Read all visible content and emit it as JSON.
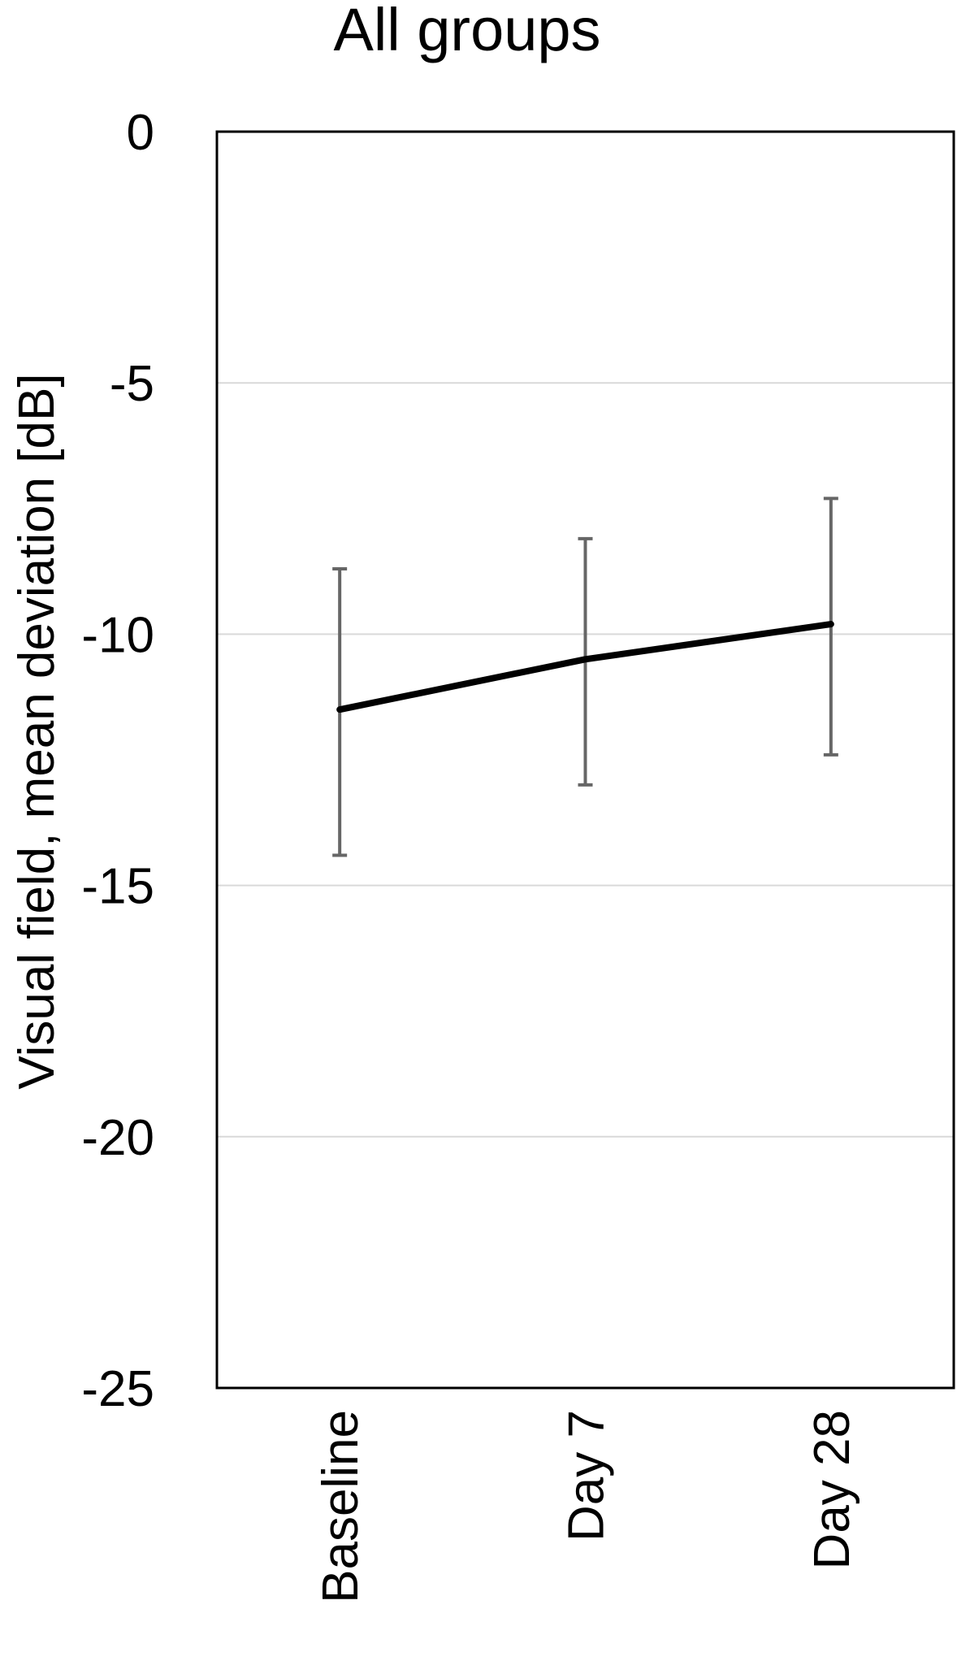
{
  "chart_data": {
    "type": "line",
    "title": "All groups",
    "xlabel": "",
    "ylabel": "Visual field, mean deviation [dB]",
    "categories": [
      "Baseline",
      "Day 7",
      "Day 28"
    ],
    "series": [
      {
        "values": [
          -11.5,
          -10.5,
          -9.8
        ],
        "error_low": [
          -14.4,
          -13.0,
          -12.4
        ],
        "error_high": [
          -8.7,
          -8.1,
          -7.3
        ]
      }
    ],
    "yticks": [
      "0",
      "-5",
      "-10",
      "-15",
      "-20",
      "-25"
    ],
    "ylim": [
      -25,
      0
    ],
    "grid": true,
    "legend": "none"
  },
  "colors": {
    "line": "#000000",
    "error_bar": "#666666",
    "grid": "#d9d9d9",
    "frame": "#000000"
  }
}
